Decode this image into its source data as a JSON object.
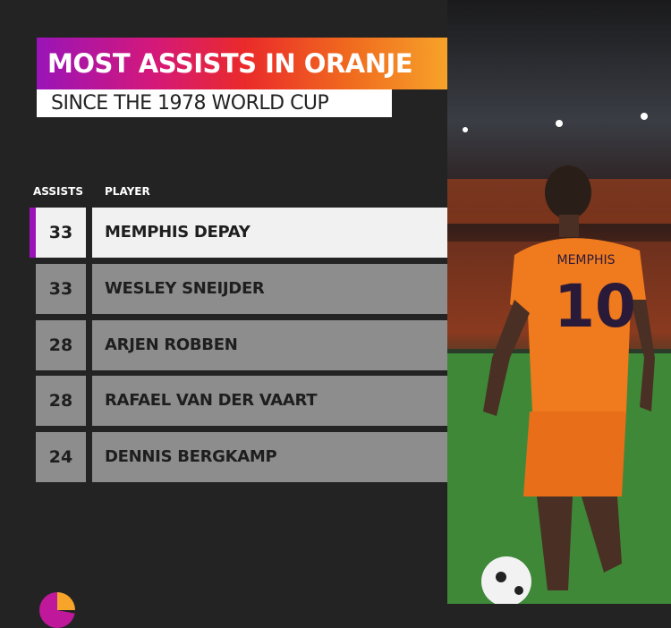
{
  "title": "MOST ASSISTS IN ORANJE",
  "subtitle": "SINCE THE 1978 WORLD CUP",
  "colors": {
    "accent": "#9a14b8",
    "gradient_start": "#9a14b8",
    "gradient_mid": "#ea2a2a",
    "gradient_end": "#f7a52a",
    "background": "#232323"
  },
  "chart_data": {
    "type": "table",
    "columns": [
      "ASSISTS",
      "PLAYER"
    ],
    "rows": [
      {
        "assists": "33",
        "player": "MEMPHIS DEPAY",
        "highlighted": true
      },
      {
        "assists": "33",
        "player": "WESLEY SNEIJDER"
      },
      {
        "assists": "28",
        "player": "ARJEN ROBBEN"
      },
      {
        "assists": "28",
        "player": "RAFAEL VAN DER VAART"
      },
      {
        "assists": "24",
        "player": "DENNIS BERGKAMP"
      }
    ]
  },
  "photo": {
    "shirt_name": "MEMPHIS",
    "shirt_number": "10"
  }
}
